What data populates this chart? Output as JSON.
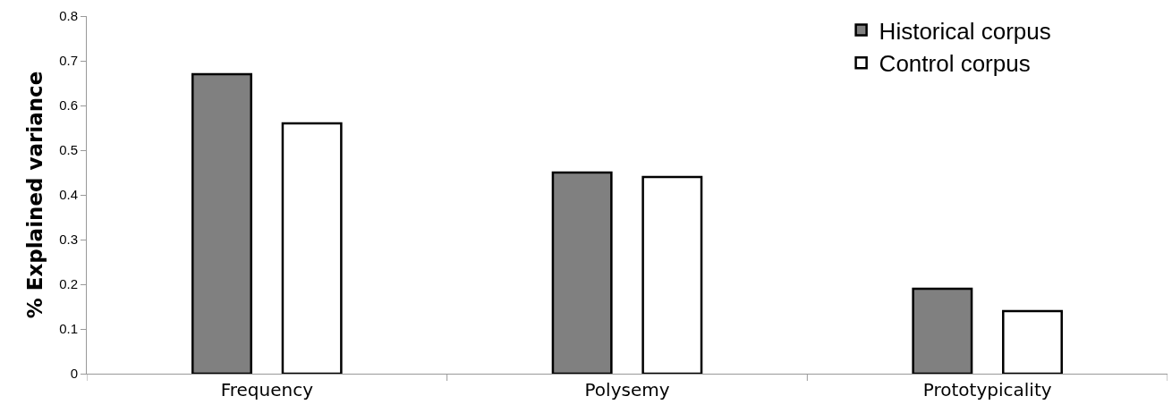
{
  "chart_data": {
    "type": "bar",
    "ylabel": "% Explained variance",
    "categories": [
      "Frequency",
      "Polysemy",
      "Prototypicality"
    ],
    "series": [
      {
        "name": "Historical corpus",
        "color": "#808080",
        "values": [
          0.67,
          0.45,
          0.19
        ]
      },
      {
        "name": "Control corpus",
        "color": "#ffffff",
        "values": [
          0.56,
          0.44,
          0.14
        ]
      }
    ],
    "ylim": [
      0,
      0.8
    ],
    "yticks": [
      0,
      0.1,
      0.2,
      0.3,
      0.4,
      0.5,
      0.6,
      0.7,
      0.8
    ],
    "grid": false,
    "legend": "top right"
  }
}
